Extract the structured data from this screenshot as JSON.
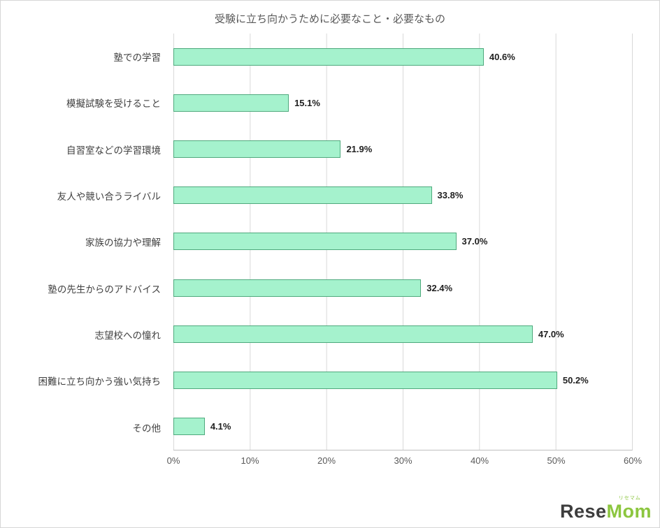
{
  "title": "受験に立ち向かうために必要なこと・必要なもの",
  "chart_data": {
    "type": "bar",
    "orientation": "horizontal",
    "title": "受験に立ち向かうために必要なこと・必要なもの",
    "categories": [
      "塾での学習",
      "模擬試験を受けること",
      "自習室などの学習環境",
      "友人や競い合うライバル",
      "家族の協力や理解",
      "塾の先生からのアドバイス",
      "志望校への憧れ",
      "困難に立ち向かう強い気持ち",
      "その他"
    ],
    "values": [
      40.6,
      15.1,
      21.9,
      33.8,
      37.0,
      32.4,
      47.0,
      50.2,
      4.1
    ],
    "value_labels": [
      "40.6%",
      "15.1%",
      "21.9%",
      "33.8%",
      "37.0%",
      "32.4%",
      "47.0%",
      "50.2%",
      "4.1%"
    ],
    "xlim": [
      0,
      60
    ],
    "x_ticks": [
      "0%",
      "10%",
      "20%",
      "30%",
      "40%",
      "50%",
      "60%"
    ],
    "grid": true,
    "legend": "none",
    "bar_fill": "#a5f2cd",
    "bar_border": "#4fa97d"
  },
  "logo": {
    "prefix": "Rese",
    "suffix": "Mom",
    "ruby": "リセマム"
  }
}
